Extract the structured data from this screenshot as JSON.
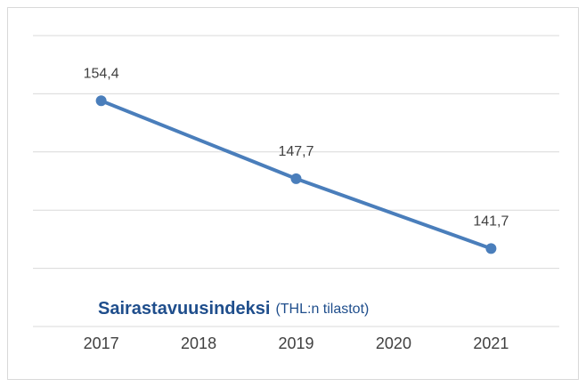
{
  "chart_data": {
    "type": "line",
    "title": "Sairastavuusindeksi",
    "subtitle": "(THL:n tilastot)",
    "x": [
      2017,
      2019,
      2021
    ],
    "series": [
      {
        "name": null,
        "color": "#4a7ebb",
        "values": [
          154.4,
          147.7,
          141.7
        ],
        "value_labels": [
          "154,4",
          "147,7",
          "141,7"
        ]
      }
    ],
    "xlim": [
      2016.3,
      2021.7
    ],
    "xticks": [
      2017,
      2018,
      2019,
      2020,
      2021
    ],
    "ylim": [
      135,
      160
    ],
    "yticks": [
      135,
      140,
      145,
      150,
      155,
      160
    ],
    "grid": true
  }
}
